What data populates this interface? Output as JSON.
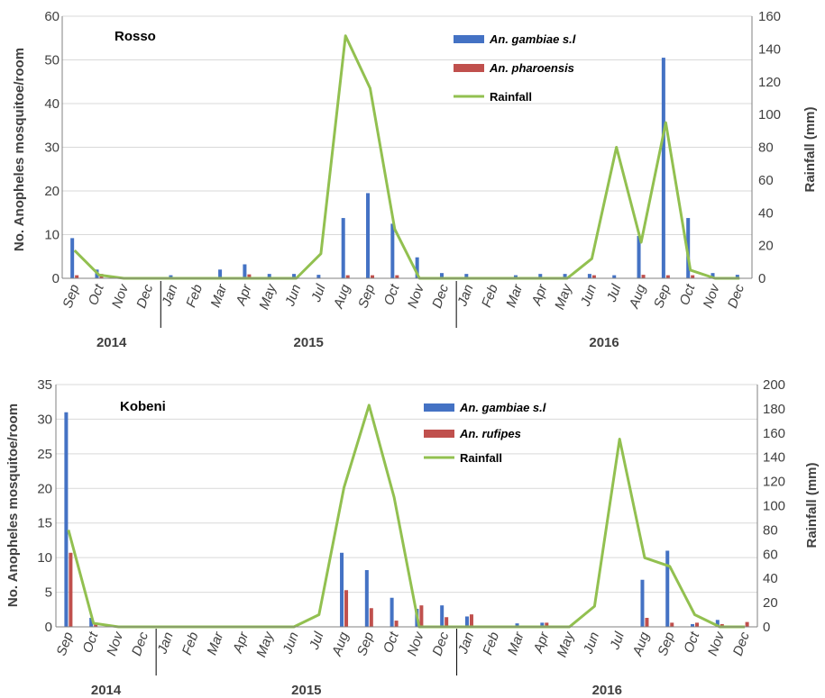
{
  "colors": {
    "gambiae": "#4472c4",
    "second": "#c0504d",
    "rainfall": "#92c050"
  },
  "months": [
    "Sep",
    "Oct",
    "Nov",
    "Dec",
    "Jan",
    "Feb",
    "Mar",
    "Apr",
    "May",
    "Jun",
    "Jul",
    "Aug",
    "Sep",
    "Oct",
    "Nov",
    "Dec",
    "Jan",
    "Feb",
    "Mar",
    "Apr",
    "May",
    "Jun",
    "Jul",
    "Aug",
    "Sep",
    "Oct",
    "Nov",
    "Dec"
  ],
  "years": [
    "2014",
    "2015",
    "2016"
  ],
  "chart_data": [
    {
      "type": "bar",
      "site": "Rosso",
      "ylabel": "No. Anopheles mosquitoe/room",
      "y2label": "Rainfall (mm)",
      "ylim": [
        0,
        60
      ],
      "y2lim": [
        0,
        160
      ],
      "yticks": [
        "0",
        "10",
        "20",
        "30",
        "40",
        "50",
        "60"
      ],
      "y2ticks": [
        "0",
        "20",
        "40",
        "60",
        "80",
        "100",
        "120",
        "140",
        "160"
      ],
      "legend_position": "top-center",
      "series": [
        {
          "name": "An. gambiae s.l",
          "kind": "bar",
          "values": [
            9.2,
            2,
            0,
            0,
            0.7,
            0,
            2,
            3.2,
            1,
            1,
            0.8,
            13.8,
            19.5,
            12.5,
            4.8,
            1.2,
            1,
            0,
            0.7,
            1,
            1,
            1,
            0.7,
            9.7,
            50.5,
            13.8,
            1.2,
            0.8
          ]
        },
        {
          "name": "An. pharoensis",
          "kind": "bar",
          "values": [
            0.7,
            1,
            0,
            0,
            0,
            0,
            0,
            0.9,
            0,
            0,
            0,
            0.7,
            0.7,
            0.7,
            0,
            0,
            0,
            0,
            0,
            0,
            0,
            0.7,
            0,
            0.8,
            0.7,
            0.7,
            0,
            0
          ]
        },
        {
          "name": "Rainfall",
          "kind": "line",
          "values": [
            17,
            2,
            0,
            0,
            0,
            0,
            0,
            0,
            0,
            0,
            15,
            148,
            116,
            30,
            0,
            0,
            0,
            0,
            0,
            0,
            0,
            12,
            80,
            22,
            95,
            5,
            0,
            0
          ]
        }
      ]
    },
    {
      "type": "bar",
      "site": "Kobeni",
      "ylabel": "No. Anopheles mosquitoe/room",
      "y2label": "Rainfall (mm)",
      "ylim": [
        0,
        35
      ],
      "y2lim": [
        0,
        200
      ],
      "yticks": [
        "0",
        "5",
        "10",
        "15",
        "20",
        "25",
        "30",
        "35"
      ],
      "y2ticks": [
        "0",
        "20",
        "40",
        "60",
        "80",
        "100",
        "120",
        "140",
        "160",
        "180",
        "200"
      ],
      "legend_position": "top-center",
      "series": [
        {
          "name": "An. gambiae s.l",
          "kind": "bar",
          "values": [
            31,
            1.3,
            0,
            0,
            0,
            0,
            0,
            0,
            0,
            0,
            0,
            10.7,
            8.2,
            4.2,
            2.6,
            3.1,
            1.5,
            0,
            0.5,
            0.6,
            0,
            0,
            0,
            6.8,
            11,
            0.4,
            1,
            0
          ]
        },
        {
          "name": "An. rufipes",
          "kind": "bar",
          "values": [
            10.7,
            0.5,
            0,
            0,
            0,
            0,
            0,
            0,
            0,
            0,
            0,
            5.3,
            2.7,
            0.9,
            3.1,
            1.4,
            1.8,
            0,
            0,
            0.6,
            0,
            0,
            0,
            1.3,
            0.6,
            0.6,
            0.4,
            0.7
          ]
        },
        {
          "name": "Rainfall",
          "kind": "line",
          "values": [
            80,
            3,
            0,
            0,
            0,
            0,
            0,
            0,
            0,
            0,
            10,
            115,
            183,
            107,
            0,
            0,
            0,
            0,
            0,
            0,
            0,
            17,
            155,
            57,
            50,
            10,
            0,
            0
          ]
        }
      ]
    }
  ]
}
